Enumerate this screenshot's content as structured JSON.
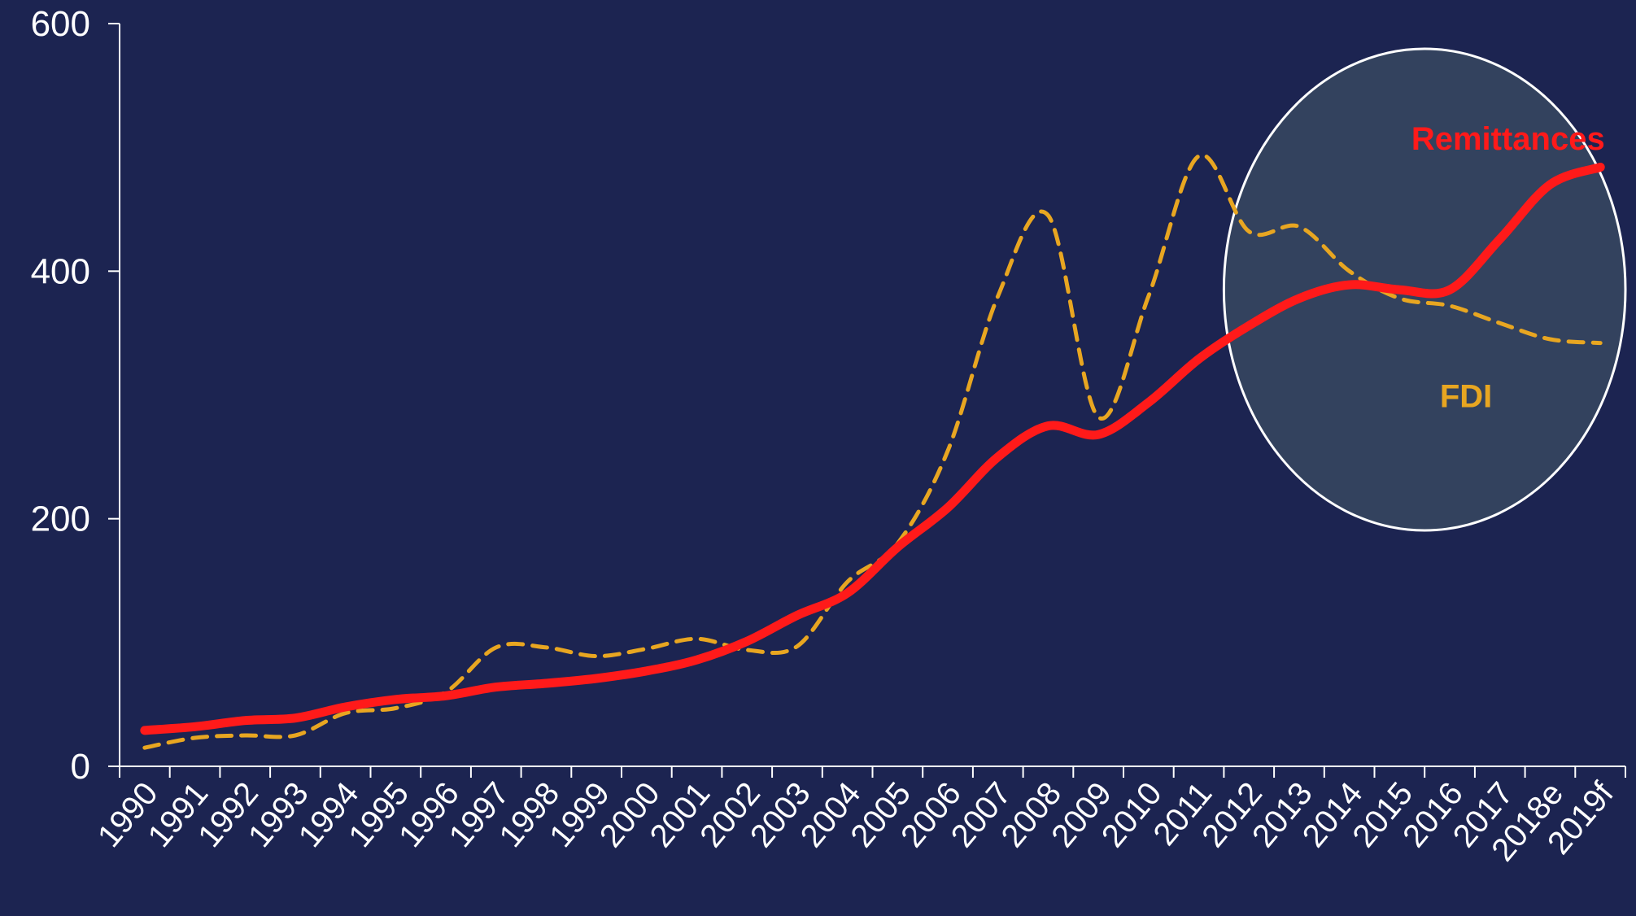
{
  "colors": {
    "background": "#1c2451",
    "remittances": "#ff1a1a",
    "fdi": "#e8a621",
    "axis": "#ffffff",
    "highlight_fill": "#33425e"
  },
  "chart_data": {
    "type": "line",
    "title": "",
    "xlabel": "",
    "ylabel": "",
    "ylim": [
      0,
      600
    ],
    "yticks": [
      0,
      200,
      400,
      600
    ],
    "grid": false,
    "categories": [
      "1990",
      "1991",
      "1992",
      "1993",
      "1994",
      "1995",
      "1996",
      "1997",
      "1998",
      "1999",
      "2000",
      "2001",
      "2002",
      "2003",
      "2004",
      "2005",
      "2006",
      "2007",
      "2008",
      "2009",
      "2010",
      "2011",
      "2012",
      "2013",
      "2014",
      "2015",
      "2016",
      "2017",
      "2018e",
      "2019f"
    ],
    "series": [
      {
        "name": "Remittances",
        "style": "solid",
        "values": [
          29,
          32,
          37,
          39,
          48,
          54,
          57,
          64,
          67,
          71,
          77,
          86,
          101,
          122,
          140,
          177,
          209,
          250,
          275,
          268,
          294,
          329,
          356,
          378,
          389,
          385,
          385,
          426,
          470,
          484
        ]
      },
      {
        "name": "FDI",
        "style": "dashed",
        "values": [
          15,
          23,
          25,
          25,
          43,
          47,
          60,
          96,
          96,
          89,
          95,
          103,
          94,
          97,
          149,
          180,
          255,
          380,
          445,
          282,
          380,
          493,
          432,
          436,
          400,
          378,
          372,
          358,
          345,
          342
        ]
      }
    ],
    "annotations": [
      {
        "label": "Remittances",
        "series": "Remittances"
      },
      {
        "label": "FDI",
        "series": "FDI"
      }
    ],
    "highlight": {
      "shape": "ellipse",
      "range": [
        "2012",
        "2019f"
      ]
    }
  }
}
